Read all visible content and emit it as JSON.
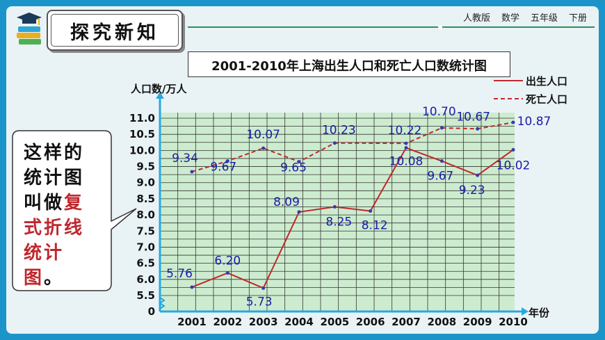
{
  "header": {
    "breadcrumb": [
      "人教版",
      "数学",
      "五年级",
      "下册"
    ],
    "page_title": "探究新知"
  },
  "callout": {
    "line1": "这样的",
    "line2": "统计图",
    "line3_plain": "叫做",
    "line3_red": "复",
    "line4_red": "式折线",
    "line5_red": "统计图",
    "line5_end": "。"
  },
  "colors": {
    "birth": "#c0272d",
    "death": "#c0272d",
    "point_label": "#1a1aa8",
    "grid_bg": "#cdeccf",
    "axis": "#29a8e0"
  },
  "chart_data": {
    "type": "line",
    "title": "2001-2010年上海出生人口和死亡人口数统计图",
    "ylabel": "人口数/万人",
    "xlabel": "年份",
    "x": [
      "2001",
      "2002",
      "2003",
      "2004",
      "2005",
      "2006",
      "2007",
      "2008",
      "2009",
      "2010"
    ],
    "y_ticks": [
      "0",
      "5.5",
      "6.0",
      "6.5",
      "7.0",
      "7.5",
      "8.0",
      "8.5",
      "9.0",
      "9.5",
      "10.0",
      "10.5",
      "11.0"
    ],
    "ylim": [
      5.5,
      11.0
    ],
    "axis_break": true,
    "grid": true,
    "legend_position": "top-right",
    "series": [
      {
        "name": "出生人口",
        "style": "solid",
        "values": [
          5.76,
          6.2,
          5.73,
          8.09,
          8.25,
          8.12,
          10.08,
          9.67,
          9.23,
          10.02
        ],
        "labels": [
          "5.76",
          "6.20",
          "5.73",
          "8.09",
          "8.25",
          "8.12",
          "10.08",
          "9.67",
          "9.23",
          "10.02"
        ]
      },
      {
        "name": "死亡人口",
        "style": "dashed",
        "values": [
          9.34,
          9.67,
          10.07,
          9.65,
          10.23,
          null,
          10.22,
          10.7,
          10.67,
          10.87
        ],
        "labels": [
          "9.34",
          "9.67",
          "10.07",
          "9.65",
          "10.23",
          null,
          "10.22",
          "10.70",
          "10.67",
          "10.87"
        ]
      }
    ]
  }
}
